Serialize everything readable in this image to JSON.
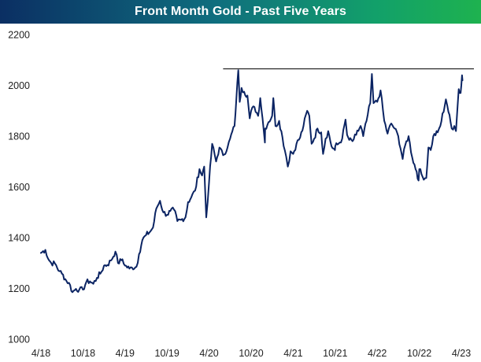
{
  "chart_data": {
    "type": "line",
    "title": "Front Month Gold - Past Five Years",
    "xlabel": "",
    "ylabel": "",
    "ylim": [
      1000,
      2200
    ],
    "xlim": [
      "2018-04",
      "2023-04"
    ],
    "grid": false,
    "legend": "none",
    "line_color": "#0b2463",
    "reference_line": {
      "value": 2065,
      "from": "2020-06",
      "to": "2023-04"
    },
    "y_ticks": [
      {
        "value": 1000,
        "label": "1000"
      },
      {
        "value": 1200,
        "label": "1200"
      },
      {
        "value": 1400,
        "label": "1400"
      },
      {
        "value": 1600,
        "label": "1600"
      },
      {
        "value": 1800,
        "label": "1800"
      },
      {
        "value": 2000,
        "label": "2000"
      },
      {
        "value": 2200,
        "label": "2200"
      }
    ],
    "x_ticks": [
      {
        "value": "2018-04",
        "label": "4/18"
      },
      {
        "value": "2018-10",
        "label": "10/18"
      },
      {
        "value": "2019-04",
        "label": "4/19"
      },
      {
        "value": "2019-10",
        "label": "10/19"
      },
      {
        "value": "2020-04",
        "label": "4/20"
      },
      {
        "value": "2020-10",
        "label": "10/20"
      },
      {
        "value": "2021-04",
        "label": "4/21"
      },
      {
        "value": "2021-10",
        "label": "10/21"
      },
      {
        "value": "2022-04",
        "label": "4/22"
      },
      {
        "value": "2022-10",
        "label": "10/22"
      },
      {
        "value": "2023-04",
        "label": "4/23"
      }
    ],
    "series": [
      {
        "values": [
          [
            "2018-04",
            1340
          ],
          [
            "2018-04-20",
            1352
          ],
          [
            "2018-05",
            1318
          ],
          [
            "2018-05-15",
            1300
          ],
          [
            "2018-06",
            1298
          ],
          [
            "2018-06-20",
            1268
          ],
          [
            "2018-07",
            1258
          ],
          [
            "2018-07-20",
            1230
          ],
          [
            "2018-08",
            1222
          ],
          [
            "2018-08-16",
            1185
          ],
          [
            "2018-09",
            1198
          ],
          [
            "2018-09-15",
            1195
          ],
          [
            "2018-10",
            1195
          ],
          [
            "2018-10-15",
            1225
          ],
          [
            "2018-11",
            1228
          ],
          [
            "2018-11-15",
            1218
          ],
          [
            "2018-12",
            1242
          ],
          [
            "2018-12-20",
            1265
          ],
          [
            "2019-01",
            1290
          ],
          [
            "2019-01-15",
            1292
          ],
          [
            "2019-02",
            1310
          ],
          [
            "2019-02-20",
            1345
          ],
          [
            "2019-03",
            1300
          ],
          [
            "2019-03-20",
            1315
          ],
          [
            "2019-04",
            1290
          ],
          [
            "2019-04-20",
            1278
          ],
          [
            "2019-05",
            1282
          ],
          [
            "2019-05-20",
            1285
          ],
          [
            "2019-06",
            1335
          ],
          [
            "2019-06-15",
            1390
          ],
          [
            "2019-07",
            1410
          ],
          [
            "2019-07-20",
            1425
          ],
          [
            "2019-08",
            1440
          ],
          [
            "2019-08-15",
            1515
          ],
          [
            "2019-09",
            1545
          ],
          [
            "2019-09-15",
            1500
          ],
          [
            "2019-10",
            1490
          ],
          [
            "2019-10-15",
            1505
          ],
          [
            "2019-11",
            1510
          ],
          [
            "2019-11-15",
            1465
          ],
          [
            "2019-12",
            1470
          ],
          [
            "2019-12-20",
            1480
          ],
          [
            "2020-01",
            1540
          ],
          [
            "2020-01-15",
            1560
          ],
          [
            "2020-02",
            1585
          ],
          [
            "2020-02-20",
            1670
          ],
          [
            "2020-03",
            1645
          ],
          [
            "2020-03-10",
            1680
          ],
          [
            "2020-03-19",
            1480
          ],
          [
            "2020-04",
            1620
          ],
          [
            "2020-04-14",
            1770
          ],
          [
            "2020-05",
            1700
          ],
          [
            "2020-05-15",
            1755
          ],
          [
            "2020-06",
            1725
          ],
          [
            "2020-06-20",
            1755
          ],
          [
            "2020-07",
            1790
          ],
          [
            "2020-07-20",
            1840
          ],
          [
            "2020-07-28",
            1950
          ],
          [
            "2020-08-06",
            2060
          ],
          [
            "2020-08-12",
            1935
          ],
          [
            "2020-08-20",
            1990
          ],
          [
            "2020-09",
            1975
          ],
          [
            "2020-09-15",
            1960
          ],
          [
            "2020-09-25",
            1870
          ],
          [
            "2020-10",
            1900
          ],
          [
            "2020-10-15",
            1915
          ],
          [
            "2020-11",
            1880
          ],
          [
            "2020-11-10",
            1950
          ],
          [
            "2020-11-20",
            1870
          ],
          [
            "2020-11-30",
            1775
          ],
          [
            "2020-12",
            1830
          ],
          [
            "2020-12-15",
            1855
          ],
          [
            "2021-01",
            1880
          ],
          [
            "2021-01-06",
            1950
          ],
          [
            "2021-01-15",
            1840
          ],
          [
            "2021-02",
            1860
          ],
          [
            "2021-02-15",
            1795
          ],
          [
            "2021-03",
            1720
          ],
          [
            "2021-03-08",
            1680
          ],
          [
            "2021-03-20",
            1740
          ],
          [
            "2021-04",
            1730
          ],
          [
            "2021-04-15",
            1770
          ],
          [
            "2021-05",
            1795
          ],
          [
            "2021-05-15",
            1840
          ],
          [
            "2021-06",
            1900
          ],
          [
            "2021-06-10",
            1880
          ],
          [
            "2021-06-20",
            1770
          ],
          [
            "2021-07",
            1790
          ],
          [
            "2021-07-15",
            1830
          ],
          [
            "2021-08",
            1815
          ],
          [
            "2021-08-09",
            1730
          ],
          [
            "2021-08-20",
            1790
          ],
          [
            "2021-09",
            1820
          ],
          [
            "2021-09-15",
            1760
          ],
          [
            "2021-09-30",
            1745
          ],
          [
            "2021-10",
            1760
          ],
          [
            "2021-10-15",
            1770
          ],
          [
            "2021-11",
            1790
          ],
          [
            "2021-11-15",
            1865
          ],
          [
            "2021-11-22",
            1805
          ],
          [
            "2021-12",
            1785
          ],
          [
            "2021-12-15",
            1780
          ],
          [
            "2022-01",
            1805
          ],
          [
            "2022-01-20",
            1840
          ],
          [
            "2022-02",
            1800
          ],
          [
            "2022-02-15",
            1860
          ],
          [
            "2022-03",
            1930
          ],
          [
            "2022-03-08",
            2045
          ],
          [
            "2022-03-15",
            1930
          ],
          [
            "2022-04",
            1935
          ],
          [
            "2022-04-15",
            1980
          ],
          [
            "2022-05",
            1860
          ],
          [
            "2022-05-15",
            1810
          ],
          [
            "2022-06",
            1850
          ],
          [
            "2022-06-15",
            1830
          ],
          [
            "2022-07",
            1800
          ],
          [
            "2022-07-20",
            1710
          ],
          [
            "2022-08",
            1765
          ],
          [
            "2022-08-15",
            1800
          ],
          [
            "2022-09",
            1715
          ],
          [
            "2022-09-20",
            1660
          ],
          [
            "2022-09-28",
            1625
          ],
          [
            "2022-10",
            1670
          ],
          [
            "2022-10-15",
            1640
          ],
          [
            "2022-11",
            1635
          ],
          [
            "2022-11-10",
            1755
          ],
          [
            "2022-11-20",
            1745
          ],
          [
            "2022-12",
            1800
          ],
          [
            "2022-12-20",
            1815
          ],
          [
            "2023-01",
            1840
          ],
          [
            "2023-01-25",
            1945
          ],
          [
            "2023-02",
            1920
          ],
          [
            "2023-02-20",
            1830
          ],
          [
            "2023-03",
            1840
          ],
          [
            "2023-03-08",
            1820
          ],
          [
            "2023-03-15",
            1920
          ],
          [
            "2023-03-20",
            1985
          ],
          [
            "2023-03-28",
            1970
          ],
          [
            "2023-04",
            2000
          ],
          [
            "2023-04-04",
            2040
          ],
          [
            "2023-04-06",
            2020
          ]
        ]
      }
    ]
  }
}
